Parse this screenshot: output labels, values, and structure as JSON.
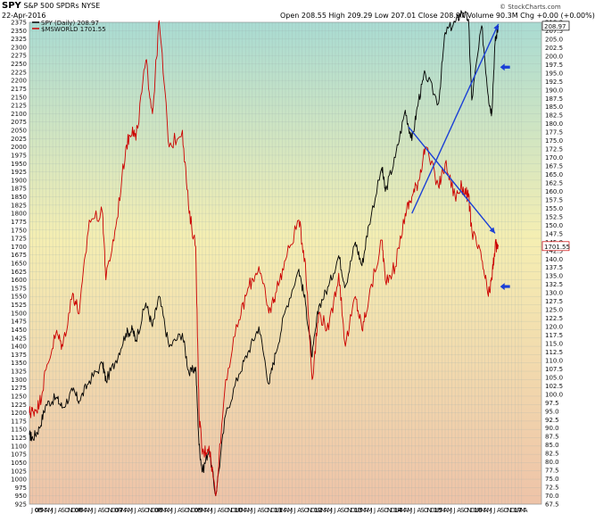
{
  "header": {
    "symbol": "SPY",
    "name": "S&P 500 SPDRs",
    "exchange": "NYSE",
    "date": "22-Apr-2016",
    "ohlc_text": "Open 208.55  High 209.29  Low 207.01  Close 208.97  Volume 90.3M  Chg +0.00 (+0.00%)",
    "brand": "© StockCharts.com"
  },
  "legend": [
    {
      "label": "SPY (Daily) 208.97",
      "color": "#000000"
    },
    {
      "label": "$MSWORLD 1701.55",
      "color": "#cc0000"
    }
  ],
  "chart_data": {
    "type": "line",
    "x_axis_labels": [
      "J",
      "05",
      "F",
      "M",
      "A",
      "M",
      "J",
      "J",
      "A",
      "S",
      "O",
      "N",
      "D",
      "06",
      "F",
      "M",
      "A",
      "M",
      "J",
      "J",
      "A",
      "S",
      "O",
      "N",
      "D",
      "07",
      "F",
      "M",
      "A",
      "M",
      "J",
      "J",
      "A",
      "S",
      "O",
      "N",
      "D",
      "08",
      "F",
      "M",
      "A",
      "M",
      "J",
      "J",
      "A",
      "S",
      "O",
      "N",
      "D",
      "09",
      "F",
      "M",
      "A",
      "M",
      "J",
      "J",
      "A",
      "S",
      "O",
      "N",
      "D",
      "10",
      "F",
      "M",
      "A",
      "M",
      "J",
      "J",
      "A",
      "S",
      "O",
      "N",
      "D",
      "11",
      "F",
      "M",
      "A",
      "M",
      "J",
      "J",
      "A",
      "S",
      "O",
      "N",
      "D",
      "12",
      "F",
      "M",
      "A",
      "M",
      "J",
      "J",
      "A",
      "S",
      "O",
      "N",
      "D",
      "13",
      "F",
      "M",
      "A",
      "M",
      "J",
      "J",
      "A",
      "S",
      "O",
      "N",
      "D",
      "14",
      "F",
      "M",
      "A",
      "M",
      "J",
      "J",
      "A",
      "S",
      "O",
      "N",
      "D",
      "15",
      "F",
      "M",
      "A",
      "M",
      "J",
      "J",
      "A",
      "S",
      "O",
      "N",
      "D",
      "16",
      "F",
      "M",
      "A",
      "M",
      "J",
      "J",
      "A",
      "S",
      "O",
      "N",
      "D",
      "17",
      "F",
      "M",
      "A"
    ],
    "left_axis": {
      "min": 925,
      "max": 2375,
      "step": 25,
      "label_series": "$MSWORLD"
    },
    "right_axis": {
      "min": 67.5,
      "max": 210,
      "step": 2.5,
      "label_series": "SPY"
    },
    "last_value_labels": {
      "right_top": "208.97",
      "right_mid": "1701.55"
    },
    "series": [
      {
        "name": "SPY (Daily) 208.97",
        "axis": "right",
        "color": "#000000",
        "points": [
          [
            "2004-07",
            88
          ],
          [
            "2004-08",
            87
          ],
          [
            "2004-10",
            90
          ],
          [
            "2004-12",
            97
          ],
          [
            "2005-03",
            99
          ],
          [
            "2005-05",
            96
          ],
          [
            "2005-08",
            101
          ],
          [
            "2005-10",
            98
          ],
          [
            "2006-01",
            104
          ],
          [
            "2006-05",
            109
          ],
          [
            "2006-06",
            104
          ],
          [
            "2006-09",
            110
          ],
          [
            "2006-12",
            118
          ],
          [
            "2007-02",
            119
          ],
          [
            "2007-03",
            116
          ],
          [
            "2007-06",
            127
          ],
          [
            "2007-08",
            120
          ],
          [
            "2007-10",
            129
          ],
          [
            "2008-01",
            114
          ],
          [
            "2008-05",
            118
          ],
          [
            "2008-07",
            106
          ],
          [
            "2008-09",
            108
          ],
          [
            "2008-10",
            85
          ],
          [
            "2008-11",
            77
          ],
          [
            "2009-01",
            84
          ],
          [
            "2009-03",
            70
          ],
          [
            "2009-06",
            94
          ],
          [
            "2009-10",
            106
          ],
          [
            "2010-01",
            113
          ],
          [
            "2010-04",
            120
          ],
          [
            "2010-07",
            103
          ],
          [
            "2010-09",
            112
          ],
          [
            "2010-12",
            125
          ],
          [
            "2011-04",
            137
          ],
          [
            "2011-06",
            127
          ],
          [
            "2011-08",
            111
          ],
          [
            "2011-10",
            126
          ],
          [
            "2012-01",
            132
          ],
          [
            "2012-04",
            141
          ],
          [
            "2012-06",
            132
          ],
          [
            "2012-09",
            145
          ],
          [
            "2012-11",
            138
          ],
          [
            "2013-01",
            150
          ],
          [
            "2013-05",
            167
          ],
          [
            "2013-06",
            160
          ],
          [
            "2013-09",
            170
          ],
          [
            "2013-12",
            184
          ],
          [
            "2014-02",
            175
          ],
          [
            "2014-04",
            187
          ],
          [
            "2014-06",
            195
          ],
          [
            "2014-10",
            186
          ],
          [
            "2014-12",
            207
          ],
          [
            "2015-03",
            210
          ],
          [
            "2015-05",
            213
          ],
          [
            "2015-07",
            211
          ],
          [
            "2015-08",
            187
          ],
          [
            "2015-11",
            209
          ],
          [
            "2016-01",
            188
          ],
          [
            "2016-02",
            183
          ],
          [
            "2016-03",
            204
          ],
          [
            "2016-04",
            208.97
          ]
        ]
      },
      {
        "name": "$MSWORLD 1701.55",
        "axis": "left",
        "color": "#cc0000",
        "points": [
          [
            "2004-07",
            1200
          ],
          [
            "2004-08",
            1205
          ],
          [
            "2004-10",
            1225
          ],
          [
            "2004-12",
            1330
          ],
          [
            "2005-03",
            1440
          ],
          [
            "2005-05",
            1400
          ],
          [
            "2005-08",
            1560
          ],
          [
            "2005-10",
            1500
          ],
          [
            "2006-01",
            1780
          ],
          [
            "2006-05",
            1800
          ],
          [
            "2006-06",
            1600
          ],
          [
            "2006-09",
            1760
          ],
          [
            "2006-12",
            2000
          ],
          [
            "2007-02",
            2060
          ],
          [
            "2007-03",
            2020
          ],
          [
            "2007-06",
            2260
          ],
          [
            "2007-08",
            2100
          ],
          [
            "2007-10",
            2380
          ],
          [
            "2008-01",
            2000
          ],
          [
            "2008-05",
            2050
          ],
          [
            "2008-07",
            1800
          ],
          [
            "2008-09",
            1700
          ],
          [
            "2008-10",
            1200
          ],
          [
            "2008-11",
            1075
          ],
          [
            "2009-01",
            1100
          ],
          [
            "2009-03",
            950
          ],
          [
            "2009-06",
            1300
          ],
          [
            "2009-10",
            1480
          ],
          [
            "2010-01",
            1580
          ],
          [
            "2010-04",
            1640
          ],
          [
            "2010-07",
            1500
          ],
          [
            "2010-09",
            1560
          ],
          [
            "2010-12",
            1660
          ],
          [
            "2011-04",
            1780
          ],
          [
            "2011-06",
            1650
          ],
          [
            "2011-08",
            1300
          ],
          [
            "2011-10",
            1500
          ],
          [
            "2012-01",
            1450
          ],
          [
            "2012-04",
            1620
          ],
          [
            "2012-06",
            1400
          ],
          [
            "2012-09",
            1550
          ],
          [
            "2012-11",
            1450
          ],
          [
            "2013-01",
            1540
          ],
          [
            "2013-05",
            1720
          ],
          [
            "2013-06",
            1600
          ],
          [
            "2013-09",
            1640
          ],
          [
            "2013-12",
            1800
          ],
          [
            "2014-02",
            1850
          ],
          [
            "2014-04",
            1900
          ],
          [
            "2014-06",
            2000
          ],
          [
            "2014-10",
            1880
          ],
          [
            "2014-12",
            1950
          ],
          [
            "2015-03",
            1850
          ],
          [
            "2015-05",
            1880
          ],
          [
            "2015-07",
            1850
          ],
          [
            "2015-08",
            1750
          ],
          [
            "2015-11",
            1660
          ],
          [
            "2016-01",
            1550
          ],
          [
            "2016-02",
            1600
          ],
          [
            "2016-03",
            1700
          ],
          [
            "2016-04",
            1701.55
          ]
        ]
      }
    ],
    "annotations": [
      {
        "type": "line",
        "color": "#1a3fd6",
        "from": [
          "2014-02",
          1800
        ],
        "to": [
          "2016-04",
          2370
        ]
      },
      {
        "type": "line",
        "color": "#1a3fd6",
        "from": [
          "2014-01",
          2060
        ],
        "to": [
          "2016-03",
          1740
        ]
      },
      {
        "type": "arrow-left",
        "color": "#1a3fd6",
        "at": [
          "2016-04",
          2240
        ]
      },
      {
        "type": "arrow-left",
        "color": "#1a3fd6",
        "at": [
          "2016-04",
          1580
        ]
      }
    ]
  }
}
